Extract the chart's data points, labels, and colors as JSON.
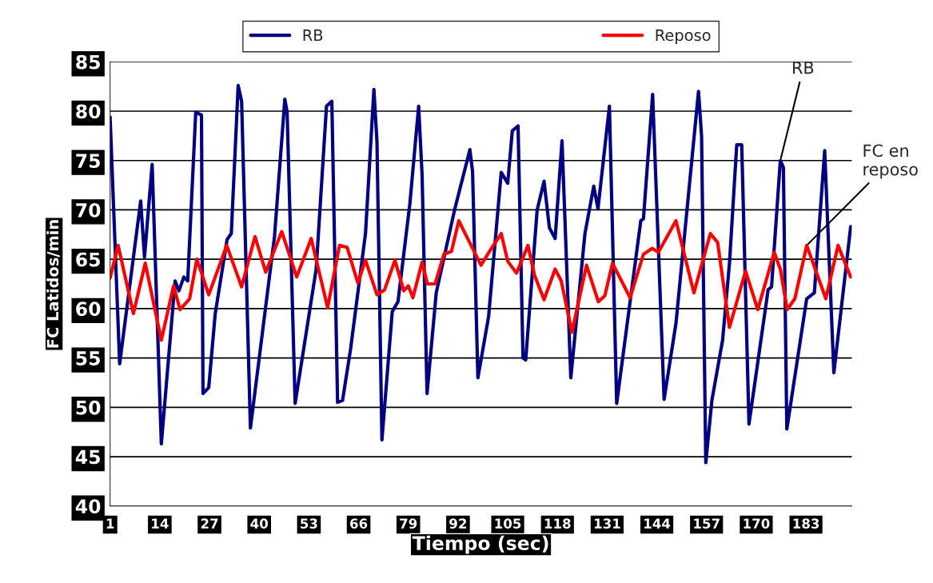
{
  "chart_data": {
    "type": "line",
    "xlabel": "Tiempo (sec)",
    "ylabel": "FC Latidos/min",
    "xlim": [
      1,
      195
    ],
    "xticks": [
      1,
      14,
      27,
      40,
      53,
      66,
      79,
      92,
      105,
      118,
      131,
      144,
      157,
      170,
      183
    ],
    "ylim": [
      40,
      85
    ],
    "yticks": [
      40,
      45,
      50,
      55,
      60,
      65,
      70,
      75,
      80,
      85
    ],
    "grid": "y",
    "legend": "top",
    "line_style": "solid",
    "marker": "none",
    "annotations": [
      {
        "text": "RB",
        "x": 176.3,
        "y": 75.0
      },
      {
        "text": "FC en\nreposo",
        "x": 183.2,
        "y": 66.4
      }
    ],
    "series": [
      {
        "name": "RB",
        "color": "#000080",
        "x": [
          1,
          3.5,
          9,
          10,
          12,
          14.4,
          18,
          19,
          20.3,
          21.3,
          23.4,
          24.9,
          25.3,
          26.8,
          28.5,
          31.6,
          32.7,
          34.5,
          35.4,
          37.7,
          44,
          46.7,
          47.3,
          49.4,
          54.9,
          57.6,
          59,
          60.5,
          61.8,
          63.9,
          67.8,
          70,
          70.8,
          72.1,
          74.8,
          76.3,
          79.4,
          81.7,
          82.6,
          83.9,
          86.3,
          91.1,
          95.1,
          95.8,
          97.2,
          100,
          103.3,
          105,
          106.2,
          107.7,
          109,
          109.7,
          112.7,
          114.5,
          115.9,
          117.4,
          119.2,
          121.5,
          125.2,
          127.5,
          128.6,
          131.6,
          133.5,
          139.8,
          140.5,
          142.9,
          145.9,
          149,
          154.9,
          155.7,
          156.8,
          158.4,
          161.2,
          163,
          164.9,
          166.2,
          168.1,
          173.1,
          174,
          176.3,
          177.1,
          178,
          183.2,
          185.2,
          187.9,
          190.3,
          194.7
        ],
        "values": [
          79.4,
          54.4,
          70.9,
          65.2,
          74.6,
          46.3,
          62.8,
          61.8,
          63.2,
          62.8,
          79.9,
          79.6,
          51.4,
          52.0,
          59.5,
          67.0,
          67.6,
          82.6,
          81.0,
          47.9,
          67.3,
          81.2,
          79.9,
          50.4,
          64.0,
          80.5,
          81.0,
          50.5,
          50.7,
          55.9,
          67.6,
          82.2,
          76.9,
          46.7,
          59.7,
          60.7,
          70.6,
          80.5,
          73.6,
          51.4,
          61.6,
          70.0,
          76.1,
          73.9,
          53.0,
          59.2,
          73.8,
          72.7,
          78.0,
          78.5,
          55.0,
          54.8,
          70.0,
          72.9,
          68.2,
          67.1,
          77.0,
          53.0,
          67.6,
          72.4,
          70.1,
          80.5,
          50.4,
          68.9,
          69.1,
          81.7,
          50.8,
          58.5,
          82.0,
          77.5,
          44.4,
          50.7,
          56.8,
          64.6,
          76.6,
          76.6,
          48.3,
          61.9,
          62.2,
          75.0,
          74.3,
          47.8,
          61.0,
          61.6,
          76.0,
          53.5,
          68.3
        ]
      },
      {
        "name": "Reposo",
        "color": "#ff0000",
        "x": [
          1,
          3.1,
          7.1,
          10.2,
          14.4,
          17.6,
          19.3,
          21.8,
          23.7,
          26.8,
          31.5,
          35.4,
          38.9,
          41.7,
          45.9,
          49.8,
          53.6,
          57.9,
          61,
          63,
          65.8,
          67.8,
          70.8,
          72.8,
          75.5,
          77.8,
          79,
          80.2,
          82.6,
          84,
          86,
          88.3,
          90.3,
          92.2,
          94.9,
          98,
          100.4,
          103.3,
          105,
          107.3,
          110.3,
          112,
          114.5,
          117.4,
          119,
          121.8,
          125.6,
          128.7,
          130.4,
          132.4,
          137,
          140.5,
          142.8,
          144.4,
          149,
          153.7,
          158,
          159.9,
          163,
          167.2,
          170.4,
          174.7,
          176.3,
          178.1,
          180.1,
          183.2,
          188.2,
          191.4,
          194.7
        ],
        "values": [
          63.1,
          66.4,
          59.5,
          64.6,
          56.8,
          62.3,
          59.9,
          61.0,
          65.0,
          61.4,
          66.4,
          62.2,
          67.3,
          63.7,
          67.8,
          63.2,
          67.1,
          60.1,
          66.4,
          66.2,
          62.6,
          64.9,
          61.4,
          61.9,
          64.9,
          61.8,
          62.3,
          61.1,
          64.7,
          62.5,
          62.5,
          65.5,
          65.8,
          68.9,
          66.8,
          64.4,
          65.9,
          67.6,
          64.8,
          63.6,
          66.4,
          63.4,
          60.9,
          64.0,
          62.8,
          57.6,
          64.4,
          60.7,
          61.3,
          64.6,
          61.1,
          65.5,
          66.1,
          65.7,
          68.9,
          61.6,
          67.6,
          66.7,
          58.1,
          63.8,
          59.9,
          65.7,
          64.0,
          59.9,
          61.0,
          66.4,
          61.0,
          66.4,
          63.2
        ]
      }
    ]
  }
}
